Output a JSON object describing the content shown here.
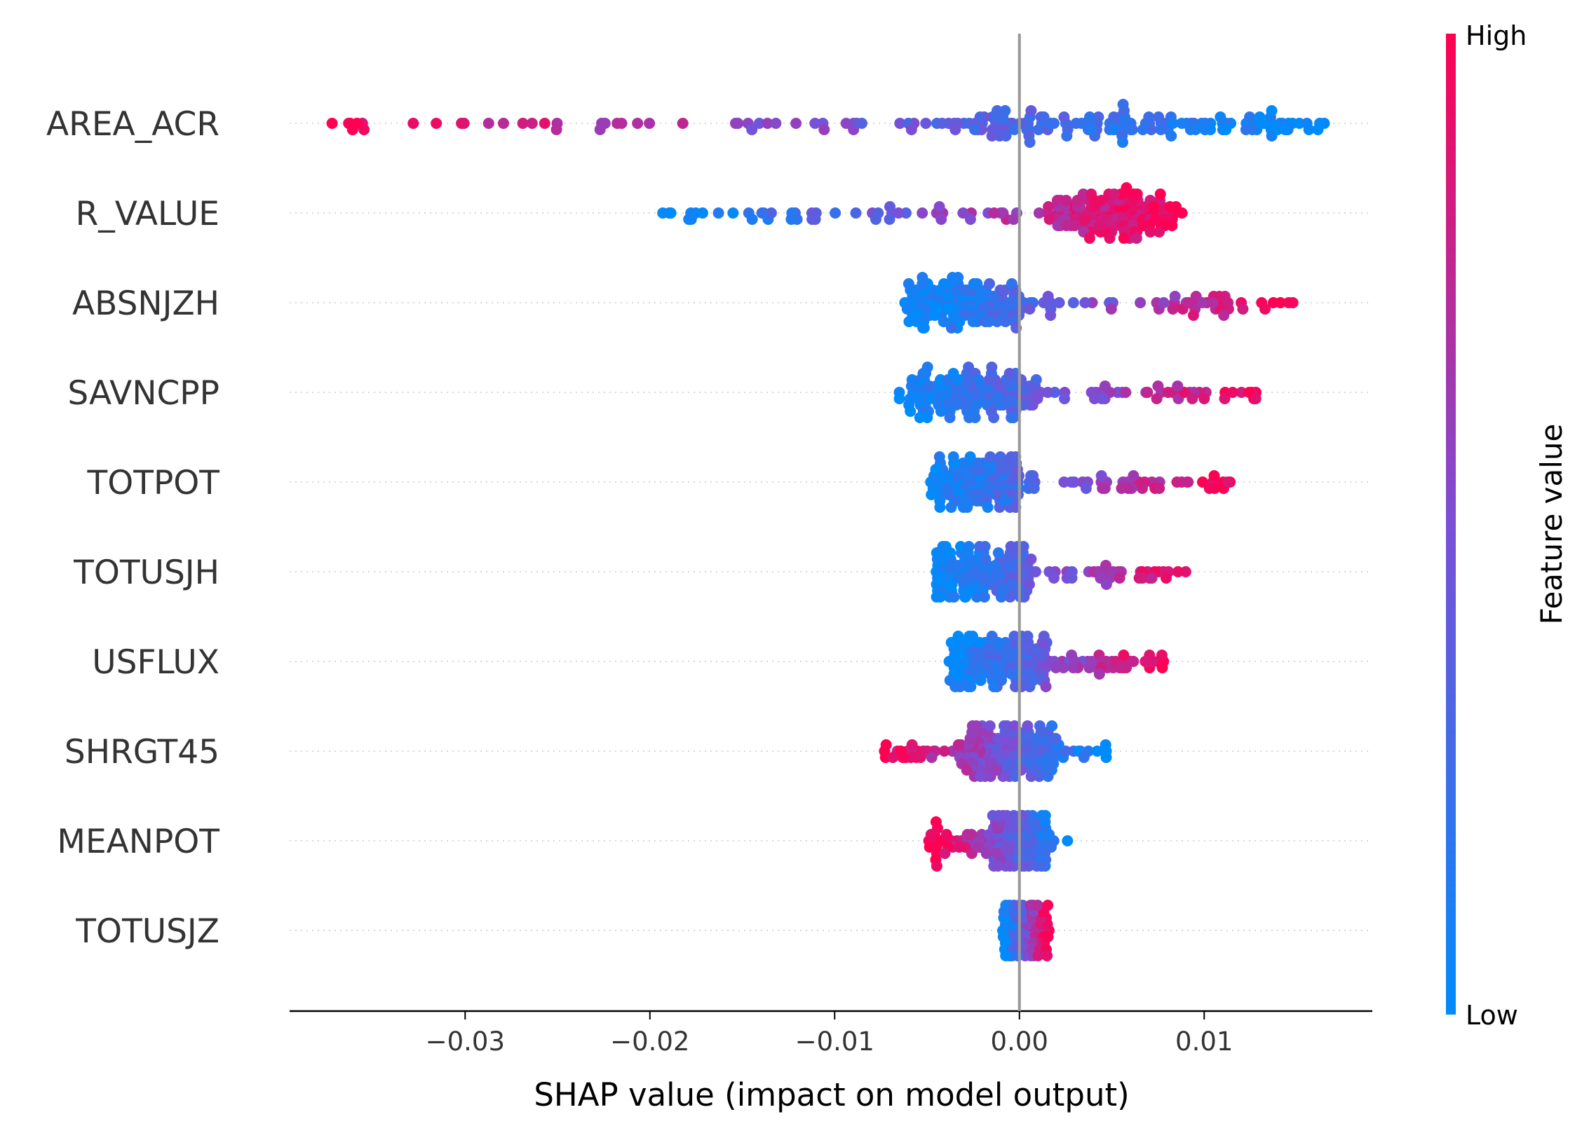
{
  "chart_data": {
    "type": "scatter",
    "subtype": "shap-beeswarm",
    "xlabel": "SHAP value (impact on model output)",
    "xlim": [
      -0.0395,
      0.0191
    ],
    "xticks": [
      -0.03,
      -0.02,
      -0.01,
      0.0,
      0.01
    ],
    "xtick_labels": [
      "−0.03",
      "−0.02",
      "−0.01",
      "0.00",
      "0.01"
    ],
    "zero_line": 0.0,
    "colorbar": {
      "title": "Feature value",
      "high_label": "High",
      "low_label": "Low",
      "low_color": "#008bfb",
      "high_color": "#ff0052"
    },
    "colors": {
      "low": "#008bfb",
      "high": "#ff0052",
      "zero_line": "#999999",
      "axis": "#000000"
    },
    "features": [
      {
        "name": "AREA_ACR",
        "min": -0.0372,
        "max": 0.0165,
        "direction": -1,
        "spread": 0.0,
        "dense_lo": -0.004,
        "dense_hi": 0.0165
      },
      {
        "name": "R_VALUE",
        "min": -0.0193,
        "max": 0.0088,
        "direction": 1,
        "spread": 0.0,
        "dense_lo": 0.002,
        "dense_hi": 0.0085
      },
      {
        "name": "ABSNJZH",
        "min": -0.0062,
        "max": 0.0148,
        "direction": 1,
        "spread": 0.0,
        "dense_lo": -0.006,
        "dense_hi": 0.0
      },
      {
        "name": "SAVNCPP",
        "min": -0.0065,
        "max": 0.0128,
        "direction": 1,
        "spread": 0.0,
        "dense_lo": -0.006,
        "dense_hi": 0.001
      },
      {
        "name": "TOTPOT",
        "min": -0.0048,
        "max": 0.0114,
        "direction": 1,
        "spread": 0.0,
        "dense_lo": -0.0048,
        "dense_hi": 0.0
      },
      {
        "name": "TOTUSJH",
        "min": -0.0045,
        "max": 0.009,
        "direction": 1,
        "spread": 0.0,
        "dense_lo": -0.0045,
        "dense_hi": 0.0005
      },
      {
        "name": "USFLUX",
        "min": -0.0038,
        "max": 0.0078,
        "direction": 1,
        "spread": 0.0,
        "dense_lo": -0.0038,
        "dense_hi": 0.0015
      },
      {
        "name": "SHRGT45",
        "min": -0.0073,
        "max": 0.0047,
        "direction": -1,
        "spread": 0.0,
        "dense_lo": -0.003,
        "dense_hi": 0.002
      },
      {
        "name": "MEANPOT",
        "min": -0.0049,
        "max": 0.0026,
        "direction": -1,
        "spread": 0.0,
        "dense_lo": -0.0015,
        "dense_hi": 0.0015
      },
      {
        "name": "TOTUSJZ",
        "min": -0.0009,
        "max": 0.0016,
        "direction": 1,
        "spread": 0.0,
        "dense_lo": -0.0008,
        "dense_hi": 0.0008
      }
    ]
  }
}
